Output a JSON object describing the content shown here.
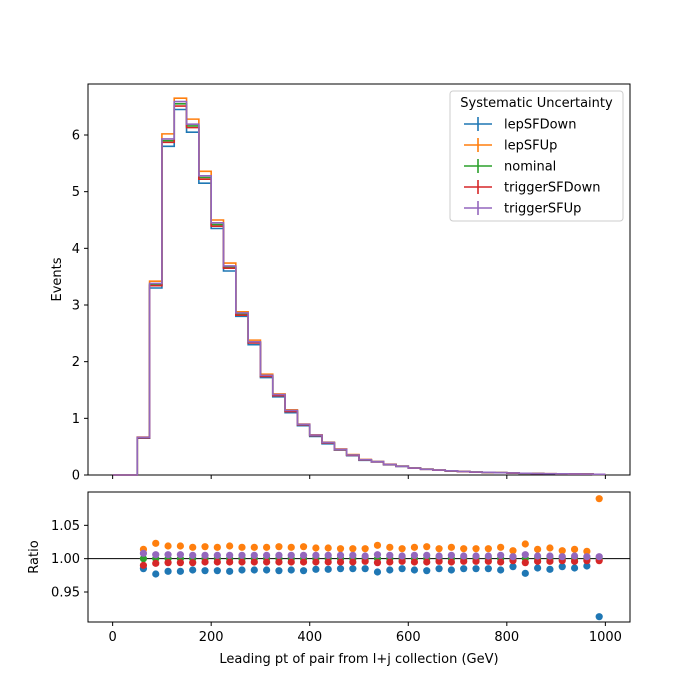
{
  "chart_data": [
    {
      "type": "line",
      "subtype": "step-histogram",
      "ylabel": "Events",
      "xlim": [
        -50,
        1050
      ],
      "ylim": [
        0,
        6.9
      ],
      "x_edges": [
        0,
        25,
        50,
        75,
        100,
        125,
        150,
        175,
        200,
        225,
        250,
        275,
        300,
        325,
        350,
        375,
        400,
        425,
        450,
        475,
        500,
        525,
        550,
        575,
        600,
        625,
        650,
        675,
        700,
        725,
        750,
        775,
        800,
        825,
        850,
        875,
        900,
        925,
        950,
        975,
        1000
      ],
      "y_ticks": [
        0,
        1,
        2,
        3,
        4,
        5,
        6
      ],
      "legend": {
        "title": "Systematic Uncertainty",
        "placement": "top-right"
      },
      "series": [
        {
          "name": "lepSFDown",
          "color": "#1f77b4",
          "values": [
            0,
            0,
            0.65,
            3.3,
            5.8,
            6.45,
            6.05,
            5.15,
            4.35,
            3.6,
            2.8,
            2.3,
            1.72,
            1.38,
            1.1,
            0.87,
            0.68,
            0.55,
            0.44,
            0.34,
            0.26,
            0.23,
            0.18,
            0.15,
            0.12,
            0.1,
            0.085,
            0.07,
            0.06,
            0.05,
            0.045,
            0.04,
            0.035,
            0.03,
            0.025,
            0.022,
            0.02,
            0.018,
            0.016,
            0.012
          ]
        },
        {
          "name": "lepSFUp",
          "color": "#ff7f0e",
          "values": [
            0,
            0,
            0.67,
            3.42,
            6.02,
            6.65,
            6.28,
            5.36,
            4.5,
            3.74,
            2.88,
            2.38,
            1.78,
            1.43,
            1.15,
            0.9,
            0.71,
            0.58,
            0.46,
            0.36,
            0.275,
            0.24,
            0.19,
            0.158,
            0.125,
            0.105,
            0.088,
            0.074,
            0.062,
            0.052,
            0.047,
            0.041,
            0.036,
            0.031,
            0.026,
            0.023,
            0.021,
            0.019,
            0.017,
            0.013
          ]
        },
        {
          "name": "nominal",
          "color": "#2ca02c",
          "values": [
            0,
            0,
            0.66,
            3.36,
            5.9,
            6.55,
            6.16,
            5.25,
            4.42,
            3.67,
            2.84,
            2.34,
            1.75,
            1.41,
            1.13,
            0.89,
            0.7,
            0.57,
            0.45,
            0.35,
            0.268,
            0.235,
            0.185,
            0.155,
            0.122,
            0.102,
            0.086,
            0.072,
            0.061,
            0.051,
            0.046,
            0.04,
            0.035,
            0.03,
            0.025,
            0.022,
            0.02,
            0.018,
            0.016,
            0.012
          ]
        },
        {
          "name": "triggerSFDown",
          "color": "#d62728",
          "values": [
            0,
            0,
            0.655,
            3.34,
            5.87,
            6.51,
            6.13,
            5.22,
            4.39,
            3.65,
            2.82,
            2.33,
            1.74,
            1.4,
            1.12,
            0.885,
            0.695,
            0.565,
            0.447,
            0.347,
            0.266,
            0.233,
            0.184,
            0.154,
            0.121,
            0.101,
            0.085,
            0.071,
            0.06,
            0.05,
            0.045,
            0.04,
            0.035,
            0.03,
            0.025,
            0.022,
            0.02,
            0.018,
            0.016,
            0.012
          ]
        },
        {
          "name": "triggerSFUp",
          "color": "#9467bd",
          "values": [
            0,
            0,
            0.665,
            3.38,
            5.93,
            6.59,
            6.19,
            5.28,
            4.45,
            3.69,
            2.86,
            2.35,
            1.76,
            1.42,
            1.14,
            0.895,
            0.705,
            0.575,
            0.453,
            0.353,
            0.27,
            0.237,
            0.186,
            0.156,
            0.123,
            0.103,
            0.087,
            0.073,
            0.062,
            0.052,
            0.047,
            0.041,
            0.036,
            0.031,
            0.026,
            0.023,
            0.021,
            0.019,
            0.017,
            0.013
          ]
        }
      ]
    },
    {
      "type": "scatter",
      "xlabel": "Leading pt of pair from l+j collection (GeV)",
      "ylabel": "Ratio",
      "xlim": [
        -50,
        1050
      ],
      "ylim": [
        0.905,
        1.1
      ],
      "x_ticks": [
        0,
        200,
        400,
        600,
        800,
        1000
      ],
      "y_ticks": [
        0.95,
        1.0,
        1.05
      ],
      "y_tick_labels": [
        "0.95",
        "1.00",
        "1.05"
      ],
      "reference_line": 1.0,
      "x": [
        62.5,
        87.5,
        112.5,
        137.5,
        162.5,
        187.5,
        212.5,
        237.5,
        262.5,
        287.5,
        312.5,
        337.5,
        362.5,
        387.5,
        412.5,
        437.5,
        462.5,
        487.5,
        512.5,
        537.5,
        562.5,
        587.5,
        612.5,
        637.5,
        662.5,
        687.5,
        712.5,
        737.5,
        762.5,
        787.5,
        812.5,
        837.5,
        862.5,
        887.5,
        912.5,
        937.5,
        962.5,
        987.5
      ],
      "series": [
        {
          "name": "lepSFDown",
          "color": "#1f77b4",
          "values": [
            0.985,
            0.977,
            0.981,
            0.981,
            0.983,
            0.982,
            0.982,
            0.981,
            0.983,
            0.983,
            0.983,
            0.982,
            0.983,
            0.982,
            0.984,
            0.984,
            0.985,
            0.985,
            0.985,
            0.98,
            0.983,
            0.985,
            0.983,
            0.982,
            0.985,
            0.983,
            0.985,
            0.985,
            0.985,
            0.983,
            0.988,
            0.978,
            0.986,
            0.984,
            0.988,
            0.986,
            0.989,
            0.913
          ]
        },
        {
          "name": "lepSFUp",
          "color": "#ff7f0e",
          "values": [
            1.014,
            1.023,
            1.019,
            1.019,
            1.017,
            1.018,
            1.017,
            1.019,
            1.017,
            1.017,
            1.017,
            1.018,
            1.017,
            1.018,
            1.016,
            1.016,
            1.015,
            1.015,
            1.015,
            1.02,
            1.017,
            1.015,
            1.017,
            1.018,
            1.015,
            1.017,
            1.015,
            1.015,
            1.015,
            1.017,
            1.012,
            1.022,
            1.014,
            1.016,
            1.012,
            1.014,
            1.011,
            1.09
          ]
        },
        {
          "name": "nominal",
          "color": "#2ca02c",
          "values": [
            1,
            1,
            1,
            1,
            1,
            1,
            1,
            1,
            1,
            1,
            1,
            1,
            1,
            1,
            1,
            1,
            1,
            1,
            1,
            1,
            1,
            1,
            1,
            1,
            1,
            1,
            1,
            1,
            1,
            1,
            1,
            1,
            1,
            1,
            1,
            1,
            1,
            1
          ]
        },
        {
          "name": "triggerSFDown",
          "color": "#d62728",
          "values": [
            0.99,
            0.993,
            0.994,
            0.994,
            0.994,
            0.995,
            0.995,
            0.995,
            0.995,
            0.995,
            0.995,
            0.995,
            0.995,
            0.995,
            0.995,
            0.995,
            0.995,
            0.995,
            0.996,
            0.994,
            0.995,
            0.996,
            0.995,
            0.995,
            0.996,
            0.995,
            0.996,
            0.996,
            0.996,
            0.995,
            0.997,
            0.994,
            0.996,
            0.996,
            0.997,
            0.996,
            0.997,
            0.997
          ]
        },
        {
          "name": "triggerSFUp",
          "color": "#9467bd",
          "values": [
            1.008,
            1.006,
            1.006,
            1.006,
            1.005,
            1.005,
            1.005,
            1.005,
            1.005,
            1.005,
            1.005,
            1.005,
            1.005,
            1.005,
            1.005,
            1.005,
            1.005,
            1.005,
            1.004,
            1.006,
            1.005,
            1.004,
            1.005,
            1.005,
            1.004,
            1.005,
            1.004,
            1.004,
            1.004,
            1.005,
            1.003,
            1.006,
            1.004,
            1.004,
            1.003,
            1.004,
            1.003,
            1.003
          ]
        }
      ]
    }
  ]
}
